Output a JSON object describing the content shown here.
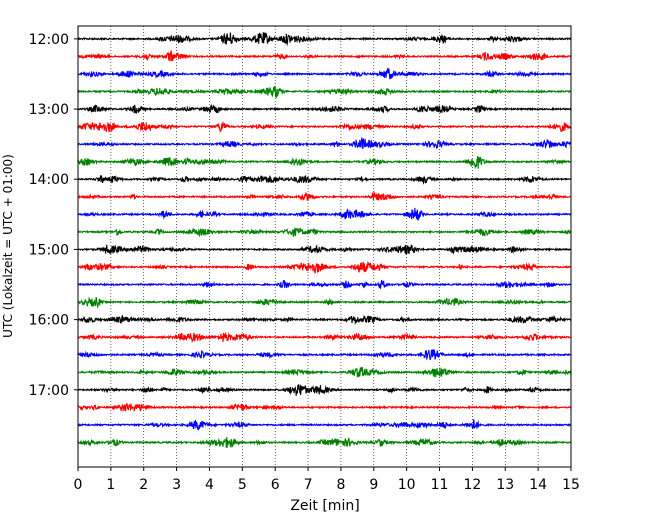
{
  "chart_data": {
    "type": "line",
    "title": "",
    "xlabel": "Zeit  [min]",
    "ylabel": "UTC (Lokalzeit = UTC + 01:00)",
    "xlim": [
      0,
      15
    ],
    "x_ticks": [
      "0",
      "1",
      "2",
      "3",
      "4",
      "5",
      "6",
      "7",
      "8",
      "9",
      "10",
      "11",
      "12",
      "13",
      "14",
      "15"
    ],
    "ylim": [
      "11:49",
      "18:06"
    ],
    "y_ticks": [
      "12:00",
      "13:00",
      "14:00",
      "15:00",
      "16:00",
      "17:00"
    ],
    "grid": "vertical dotted lines at each minute",
    "trace_interval_minutes": 15,
    "trace_start": "12:00",
    "trace_count": 24,
    "color_cycle": [
      "#000000",
      "#ff0000",
      "#0000ff",
      "#008000"
    ],
    "series_description": "Seismogram helicorder: one 15-minute trace per row, starting at each y tick and every 15 minutes thereafter"
  }
}
